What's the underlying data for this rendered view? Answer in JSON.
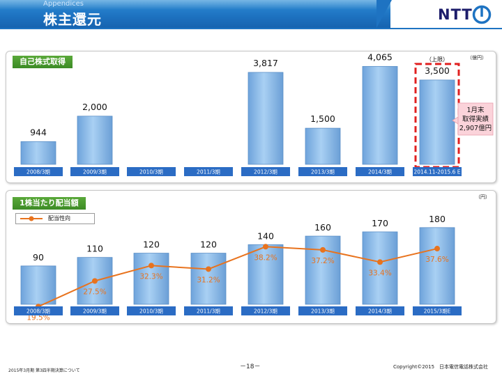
{
  "header": {
    "section": "Appendices",
    "title": "株主還元",
    "logo": "NTT"
  },
  "buyback": {
    "tag": "自己株式取得",
    "unit": "（億円）",
    "periods": [
      "2008/3期",
      "2009/3期",
      "2010/3期",
      "2011/3期",
      "2012/3期",
      "2013/3期",
      "2014/3期",
      "2014.11-2015.6 E"
    ],
    "values": [
      944,
      2000,
      null,
      null,
      3817,
      1500,
      4065,
      3500
    ],
    "value_labels": [
      "944",
      "2,000",
      "",
      "",
      "3,817",
      "1,500",
      "4,065",
      "3,500"
    ],
    "cap_note": "（上限）",
    "callout": [
      "1月末",
      "取得実績",
      "2,907億円"
    ]
  },
  "dividend": {
    "tag": "1株当たり配当額",
    "unit": "（円）",
    "legend": "配当性向",
    "periods": [
      "2008/3期",
      "2009/3期",
      "2010/3期",
      "2011/3期",
      "2012/3期",
      "2013/3期",
      "2014/3期",
      "2015/3期E"
    ],
    "values": [
      90,
      110,
      120,
      120,
      140,
      160,
      170,
      180
    ],
    "payout_ratio": [
      19.5,
      27.5,
      32.3,
      31.2,
      38.2,
      37.2,
      33.4,
      37.6
    ],
    "payout_labels": [
      "19.5%",
      "27.5%",
      "32.3%",
      "31.2%",
      "38.2%",
      "37.2%",
      "33.4%",
      "37.6%"
    ]
  },
  "colors": {
    "bar": "#8fbce8",
    "bar_edge": "#5b8fc7",
    "line": "#e8731e",
    "tag": "#4a9a2f",
    "axis_label_bg": "#2b6cc4"
  },
  "footer": {
    "left": "2015年3月期 第3四半期決算について",
    "page": "－18－",
    "copyright": "Copyright©2015　日本電信電話株式会社"
  }
}
